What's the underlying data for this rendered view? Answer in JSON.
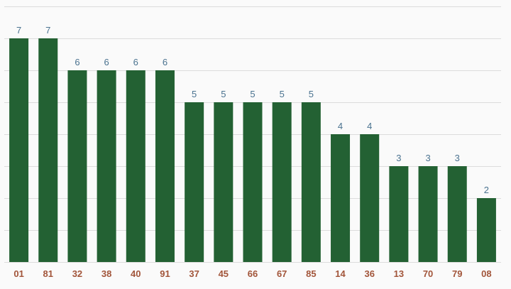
{
  "chart_data": {
    "type": "bar",
    "categories": [
      "01",
      "81",
      "32",
      "38",
      "40",
      "91",
      "37",
      "45",
      "66",
      "67",
      "85",
      "14",
      "36",
      "13",
      "70",
      "79",
      "08"
    ],
    "values": [
      7,
      7,
      6,
      6,
      6,
      6,
      5,
      5,
      5,
      5,
      5,
      4,
      4,
      3,
      3,
      3,
      2
    ],
    "ylim": [
      0,
      8
    ],
    "grid": true,
    "legend": "none",
    "colors": {
      "bar": "#236133",
      "value_label": "#4b7390",
      "tick_label": "#a2553a",
      "grid": "#dcdcdc"
    }
  }
}
